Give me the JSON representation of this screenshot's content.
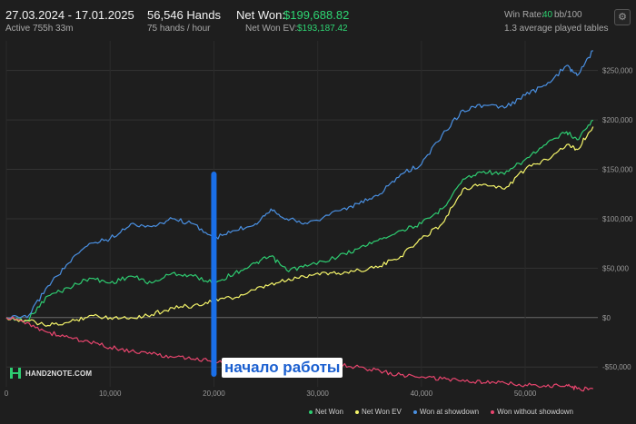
{
  "header": {
    "date_range": "27.03.2024 - 17.01.2025",
    "active": "Active 755h 33m",
    "hands": "56,546 Hands",
    "hands_per_hour": "75 hands / hour",
    "net_won_label": "Net Won:",
    "net_won_value": "$199,688.82",
    "net_won_ev_label": "Net Won  EV:",
    "net_won_ev_value": "$193,187.42",
    "win_rate_label": "Win Rate:",
    "win_rate_value": "40",
    "win_rate_unit": "bb/100",
    "avg_tables": "1.3 average played tables"
  },
  "logo": {
    "text": "HAND2NOTE.COM"
  },
  "annotation": {
    "text": "начало работы",
    "color": "#1a6fe8"
  },
  "icons": {
    "settings": "gear-icon"
  },
  "colors": {
    "net_won": "#2ecc71",
    "net_won_ev": "#f4f46a",
    "won_at_showdown": "#4a90e2",
    "won_without_showdown": "#e8456e",
    "accent_green": "#2ed573"
  },
  "chart_data": {
    "type": "line",
    "xlim": [
      0,
      57000
    ],
    "ylim": [
      -70000,
      280000
    ],
    "x_ticks": [
      0,
      10000,
      20000,
      30000,
      40000,
      50000
    ],
    "x_tick_labels": [
      "0",
      "10,000",
      "20,000",
      "30,000",
      "40,000",
      "50,000"
    ],
    "y_ticks": [
      -50000,
      0,
      50000,
      100000,
      150000,
      200000,
      250000
    ],
    "y_tick_labels": [
      "-$50,000",
      "$0",
      "$50,000",
      "$100,000",
      "$150,000",
      "$200,000",
      "$250,000"
    ],
    "grid": true,
    "legend_position": "bottom-right",
    "marker_x": 20000,
    "series": [
      {
        "name": "Net Won",
        "color": "#2ecc71",
        "x": [
          0,
          2000,
          4000,
          6000,
          8000,
          10000,
          12000,
          14000,
          16000,
          18000,
          20000,
          22000,
          24000,
          25500,
          27000,
          29000,
          32000,
          34000,
          36000,
          38000,
          40000,
          42000,
          44000,
          46000,
          48000,
          50000,
          52000,
          54000,
          55000,
          56546
        ],
        "y": [
          0,
          -3000,
          22000,
          30000,
          40000,
          35000,
          42000,
          35000,
          45000,
          42000,
          35000,
          45000,
          55000,
          62000,
          48000,
          52000,
          62000,
          70000,
          80000,
          88000,
          95000,
          110000,
          140000,
          148000,
          145000,
          160000,
          175000,
          188000,
          180000,
          199689
        ]
      },
      {
        "name": "Net Won  EV",
        "color": "#f4f46a",
        "x": [
          0,
          2000,
          4000,
          6000,
          8000,
          10000,
          12000,
          14000,
          16000,
          18000,
          20000,
          22000,
          24000,
          26000,
          28000,
          30000,
          32000,
          34000,
          36000,
          38000,
          40000,
          42000,
          44000,
          46000,
          48000,
          50000,
          52000,
          54000,
          55000,
          56546
        ],
        "y": [
          0,
          -3000,
          -8000,
          -5000,
          2000,
          0,
          0,
          3000,
          10000,
          12000,
          18000,
          20000,
          28000,
          35000,
          40000,
          45000,
          45000,
          48000,
          52000,
          62000,
          80000,
          95000,
          130000,
          135000,
          130000,
          150000,
          160000,
          175000,
          170000,
          193187
        ]
      },
      {
        "name": "Won at showdown",
        "color": "#4a90e2",
        "x": [
          0,
          2000,
          4000,
          6000,
          8000,
          10000,
          12000,
          14000,
          16000,
          18000,
          20000,
          22000,
          24000,
          25500,
          27000,
          29000,
          32000,
          34000,
          36000,
          38000,
          40000,
          42000,
          44000,
          46000,
          48000,
          50000,
          52000,
          54000,
          55000,
          56546
        ],
        "y": [
          0,
          0,
          32000,
          55000,
          75000,
          80000,
          95000,
          92000,
          100000,
          95000,
          80000,
          88000,
          95000,
          110000,
          100000,
          95000,
          108000,
          115000,
          125000,
          145000,
          155000,
          185000,
          210000,
          215000,
          212000,
          225000,
          235000,
          255000,
          245000,
          270000
        ]
      },
      {
        "name": "Won without showdown",
        "color": "#e8456e",
        "x": [
          0,
          2000,
          4000,
          6000,
          8000,
          10000,
          12000,
          14000,
          16000,
          18000,
          20000,
          22000,
          24000,
          26000,
          28000,
          30000,
          32000,
          34000,
          36000,
          38000,
          40000,
          42000,
          44000,
          46000,
          48000,
          50000,
          52000,
          54000,
          55000,
          56546
        ],
        "y": [
          0,
          -5000,
          -15000,
          -20000,
          -25000,
          -30000,
          -34000,
          -37000,
          -40000,
          -42000,
          -44000,
          -44000,
          -45000,
          -47000,
          -46000,
          -47000,
          -48000,
          -50000,
          -54000,
          -58000,
          -60000,
          -62000,
          -63000,
          -66000,
          -66000,
          -68000,
          -70000,
          -68000,
          -72000,
          -72000
        ]
      }
    ]
  }
}
